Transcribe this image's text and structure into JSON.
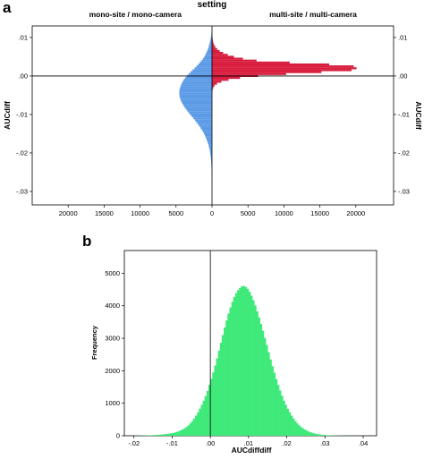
{
  "chart_data": [
    {
      "panel": "a",
      "type": "bar",
      "orientation": "horizontal-back-to-back",
      "title": "setting",
      "ylabel": "AUCdiff",
      "ylim": [
        -0.0335,
        0.013
      ],
      "xlim": [
        0,
        25000
      ],
      "y_ticks": [
        0.01,
        0.0,
        -0.01,
        -0.02,
        -0.03
      ],
      "y_tick_labels": [
        ".01",
        ".00",
        "-.01",
        "-.02",
        "-.03"
      ],
      "x_ticks": [
        20000,
        15000,
        10000,
        5000,
        0,
        5000,
        10000,
        15000,
        20000
      ],
      "x_tick_labels": [
        "20000",
        "15000",
        "10000",
        "5000",
        "0",
        "5000",
        "10000",
        "15000",
        "20000"
      ],
      "zero_reference_line": 0.0,
      "bin_width": 0.0005,
      "series": [
        {
          "name": "mono-site / mono-camera",
          "side": "left",
          "color": "#5b9ae6",
          "bins": [
            {
              "y": 0.0115,
              "count": 50
            },
            {
              "y": 0.011,
              "count": 80
            },
            {
              "y": 0.0105,
              "count": 110
            },
            {
              "y": 0.01,
              "count": 150
            },
            {
              "y": 0.0095,
              "count": 200
            },
            {
              "y": 0.009,
              "count": 260
            },
            {
              "y": 0.0085,
              "count": 330
            },
            {
              "y": 0.008,
              "count": 400
            },
            {
              "y": 0.0075,
              "count": 480
            },
            {
              "y": 0.007,
              "count": 570
            },
            {
              "y": 0.0065,
              "count": 670
            },
            {
              "y": 0.006,
              "count": 790
            },
            {
              "y": 0.0055,
              "count": 920
            },
            {
              "y": 0.005,
              "count": 1060
            },
            {
              "y": 0.0045,
              "count": 1240
            },
            {
              "y": 0.004,
              "count": 1450
            },
            {
              "y": 0.0035,
              "count": 1680
            },
            {
              "y": 0.003,
              "count": 1900
            },
            {
              "y": 0.0025,
              "count": 2150
            },
            {
              "y": 0.002,
              "count": 2420
            },
            {
              "y": 0.0015,
              "count": 2700
            },
            {
              "y": 0.001,
              "count": 2980
            },
            {
              "y": 0.0005,
              "count": 3250
            },
            {
              "y": 0.0,
              "count": 3500
            },
            {
              "y": -0.0005,
              "count": 3720
            },
            {
              "y": -0.001,
              "count": 3920
            },
            {
              "y": -0.0015,
              "count": 4080
            },
            {
              "y": -0.002,
              "count": 4220
            },
            {
              "y": -0.0025,
              "count": 4340
            },
            {
              "y": -0.003,
              "count": 4430
            },
            {
              "y": -0.0035,
              "count": 4500
            },
            {
              "y": -0.004,
              "count": 4540
            },
            {
              "y": -0.0045,
              "count": 4550
            },
            {
              "y": -0.005,
              "count": 4530
            },
            {
              "y": -0.0055,
              "count": 4480
            },
            {
              "y": -0.006,
              "count": 4400
            },
            {
              "y": -0.0065,
              "count": 4300
            },
            {
              "y": -0.007,
              "count": 4170
            },
            {
              "y": -0.0075,
              "count": 4020
            },
            {
              "y": -0.008,
              "count": 3850
            },
            {
              "y": -0.0085,
              "count": 3660
            },
            {
              "y": -0.009,
              "count": 3460
            },
            {
              "y": -0.0095,
              "count": 3250
            },
            {
              "y": -0.01,
              "count": 3030
            },
            {
              "y": -0.0105,
              "count": 2810
            },
            {
              "y": -0.011,
              "count": 2590
            },
            {
              "y": -0.0115,
              "count": 2370
            },
            {
              "y": -0.012,
              "count": 2160
            },
            {
              "y": -0.0125,
              "count": 1960
            },
            {
              "y": -0.013,
              "count": 1770
            },
            {
              "y": -0.0135,
              "count": 1590
            },
            {
              "y": -0.014,
              "count": 1420
            },
            {
              "y": -0.0145,
              "count": 1260
            },
            {
              "y": -0.015,
              "count": 1110
            },
            {
              "y": -0.0155,
              "count": 980
            },
            {
              "y": -0.016,
              "count": 860
            },
            {
              "y": -0.0165,
              "count": 750
            },
            {
              "y": -0.017,
              "count": 650
            },
            {
              "y": -0.0175,
              "count": 560
            },
            {
              "y": -0.018,
              "count": 480
            },
            {
              "y": -0.0185,
              "count": 410
            },
            {
              "y": -0.019,
              "count": 350
            },
            {
              "y": -0.0195,
              "count": 300
            },
            {
              "y": -0.02,
              "count": 255
            },
            {
              "y": -0.0205,
              "count": 215
            },
            {
              "y": -0.021,
              "count": 180
            },
            {
              "y": -0.0215,
              "count": 150
            },
            {
              "y": -0.022,
              "count": 125
            },
            {
              "y": -0.0225,
              "count": 105
            },
            {
              "y": -0.023,
              "count": 88
            },
            {
              "y": -0.0235,
              "count": 73
            },
            {
              "y": -0.024,
              "count": 60
            },
            {
              "y": -0.0245,
              "count": 50
            },
            {
              "y": -0.025,
              "count": 42
            },
            {
              "y": -0.0255,
              "count": 35
            },
            {
              "y": -0.026,
              "count": 29
            },
            {
              "y": -0.0265,
              "count": 24
            },
            {
              "y": -0.027,
              "count": 20
            },
            {
              "y": -0.0275,
              "count": 16
            },
            {
              "y": -0.028,
              "count": 13
            },
            {
              "y": -0.0285,
              "count": 10
            },
            {
              "y": -0.029,
              "count": 8
            },
            {
              "y": -0.0295,
              "count": 6
            },
            {
              "y": -0.03,
              "count": 5
            }
          ]
        },
        {
          "name": "multi-site / multi-camera",
          "side": "right",
          "color": "#d81b3c",
          "bins": [
            {
              "y": 0.0105,
              "count": 40
            },
            {
              "y": 0.01,
              "count": 60
            },
            {
              "y": 0.0095,
              "count": 90
            },
            {
              "y": 0.009,
              "count": 140
            },
            {
              "y": 0.0085,
              "count": 210
            },
            {
              "y": 0.008,
              "count": 320
            },
            {
              "y": 0.0075,
              "count": 480
            },
            {
              "y": 0.007,
              "count": 720
            },
            {
              "y": 0.0065,
              "count": 1060
            },
            {
              "y": 0.006,
              "count": 1550
            },
            {
              "y": 0.0055,
              "count": 2200
            },
            {
              "y": 0.005,
              "count": 3050
            },
            {
              "y": 0.0045,
              "count": 4300
            },
            {
              "y": 0.004,
              "count": 6200
            },
            {
              "y": 0.0035,
              "count": 10800
            },
            {
              "y": 0.003,
              "count": 16300
            },
            {
              "y": 0.0025,
              "count": 19700
            },
            {
              "y": 0.002,
              "count": 20100
            },
            {
              "y": 0.0015,
              "count": 19400
            },
            {
              "y": 0.001,
              "count": 15200
            },
            {
              "y": 0.0005,
              "count": 10300
            },
            {
              "y": 0.0,
              "count": 6400
            },
            {
              "y": -0.0005,
              "count": 3900
            },
            {
              "y": -0.001,
              "count": 2300
            },
            {
              "y": -0.0015,
              "count": 1300
            },
            {
              "y": -0.002,
              "count": 700
            },
            {
              "y": -0.0025,
              "count": 360
            },
            {
              "y": -0.003,
              "count": 180
            },
            {
              "y": -0.0035,
              "count": 90
            },
            {
              "y": -0.004,
              "count": 45
            },
            {
              "y": -0.0045,
              "count": 20
            }
          ]
        }
      ]
    },
    {
      "panel": "b",
      "type": "bar",
      "subtype": "histogram",
      "xlabel": "AUCdiffdiff",
      "ylabel": "Frequency",
      "xlim": [
        -0.0225,
        0.0435
      ],
      "ylim": [
        0,
        5700
      ],
      "x_ticks": [
        -0.02,
        -0.01,
        0.0,
        0.01,
        0.02,
        0.03,
        0.04
      ],
      "x_tick_labels": [
        "-.02",
        "-.01",
        ".00",
        ".01",
        ".02",
        ".03",
        ".04"
      ],
      "y_ticks": [
        0,
        1000,
        2000,
        3000,
        4000,
        5000
      ],
      "y_tick_labels": [
        "0",
        "1000",
        "2000",
        "3000",
        "4000",
        "5000"
      ],
      "zero_reference_line": 0.0,
      "bin_width": 0.0005,
      "color": "#3fe97a",
      "bins": {
        "x_start": -0.02,
        "counts": [
          2,
          3,
          4,
          5,
          6,
          8,
          10,
          12,
          15,
          18,
          20,
          24,
          28,
          33,
          38,
          44,
          50,
          58,
          66,
          75,
          85,
          100,
          118,
          140,
          165,
          195,
          230,
          270,
          320,
          380,
          450,
          530,
          620,
          720,
          830,
          950,
          1080,
          1220,
          1380,
          1560,
          1750,
          1950,
          2160,
          2380,
          2620,
          2860,
          3100,
          3330,
          3550,
          3760,
          3950,
          4120,
          4270,
          4390,
          4480,
          4550,
          4600,
          4610,
          4580,
          4520,
          4430,
          4310,
          4170,
          4010,
          3830,
          3640,
          3440,
          3230,
          3010,
          2790,
          2570,
          2350,
          2140,
          1940,
          1740,
          1560,
          1390,
          1230,
          1080,
          950,
          830,
          720,
          620,
          530,
          450,
          380,
          320,
          270,
          225,
          190,
          155,
          128,
          105,
          86,
          70,
          57,
          46,
          37,
          30,
          24,
          19,
          15,
          12,
          10,
          8,
          7,
          6,
          5,
          4,
          4,
          3,
          3,
          2,
          2,
          2,
          2,
          1,
          1,
          1,
          1,
          1,
          1
        ]
      }
    }
  ]
}
